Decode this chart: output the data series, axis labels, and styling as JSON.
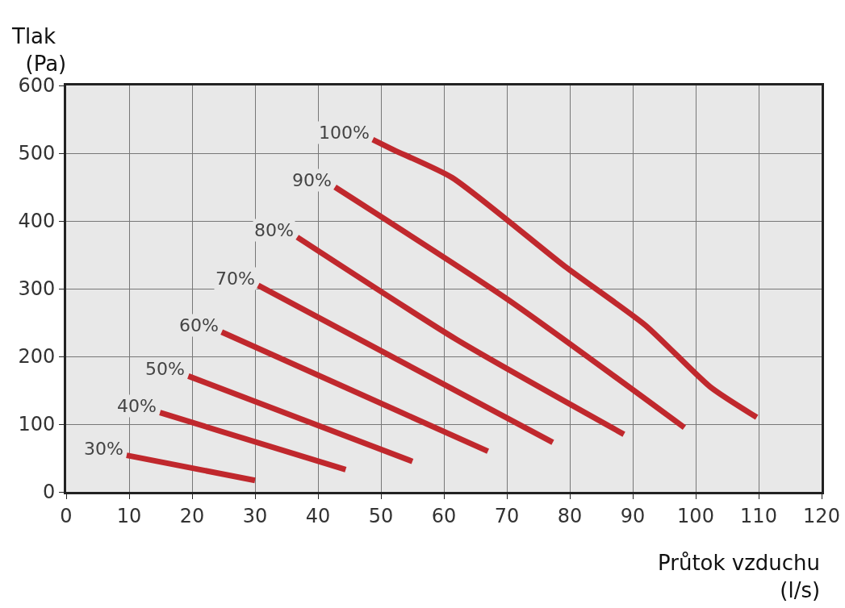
{
  "chart_data": {
    "type": "line",
    "xlabel": "Průtok vzduchu\n(l/s)",
    "ylabel": "Tlak\n(Pa)",
    "xlim": [
      0,
      120
    ],
    "xticks": [
      0,
      10,
      20,
      30,
      40,
      50,
      60,
      70,
      80,
      90,
      100,
      110,
      120
    ],
    "ylim": [
      0,
      600
    ],
    "yticks": [
      0,
      100,
      200,
      300,
      400,
      500,
      600
    ],
    "grid": true,
    "legend": false,
    "marker": "none",
    "line_style": "solid",
    "series": [
      {
        "name": "30%",
        "color": "#c0282d",
        "x": [
          9.6,
          30
        ],
        "values": [
          54,
          17
        ]
      },
      {
        "name": "40%",
        "color": "#c0282d",
        "x": [
          14.9,
          44.4
        ],
        "values": [
          117,
          33
        ]
      },
      {
        "name": "50%",
        "color": "#c0282d",
        "x": [
          19.4,
          55
        ],
        "values": [
          171,
          45
        ]
      },
      {
        "name": "60%",
        "color": "#c0282d",
        "x": [
          24.7,
          67
        ],
        "values": [
          236,
          60
        ]
      },
      {
        "name": "70%",
        "color": "#c0282d",
        "x": [
          30.5,
          77.3
        ],
        "values": [
          305,
          73
        ]
      },
      {
        "name": "80%",
        "color": "#c0282d",
        "x": [
          36.7,
          62,
          88.6
        ],
        "values": [
          376,
          225,
          85
        ]
      },
      {
        "name": "90%",
        "color": "#c0282d",
        "x": [
          42.7,
          70,
          98.2
        ],
        "values": [
          450,
          285,
          95
        ]
      },
      {
        "name": "100%",
        "color": "#c0282d",
        "x": [
          48.7,
          52,
          61.3,
          79.2,
          92,
          102.3,
          109.7
        ],
        "values": [
          520,
          505,
          464,
          333,
          246,
          155,
          110
        ]
      }
    ]
  }
}
